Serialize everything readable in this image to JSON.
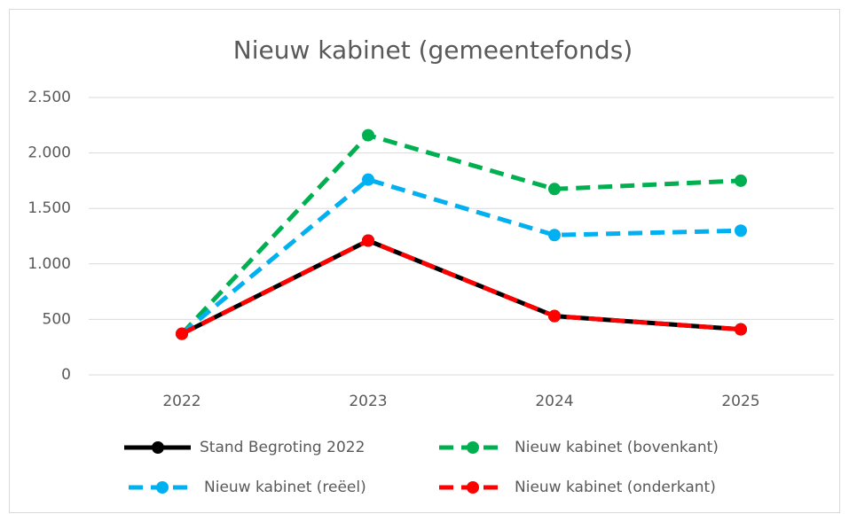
{
  "chart_data": {
    "type": "line",
    "title": "Nieuw kabinet (gemeentefonds)",
    "categories": [
      "2022",
      "2023",
      "2024",
      "2025"
    ],
    "series": [
      {
        "name": "Stand Begroting 2022",
        "color": "#000000",
        "dash": false,
        "values": [
          370,
          1210,
          530,
          410
        ]
      },
      {
        "name": "Nieuw kabinet (bovenkant)",
        "color": "#00b050",
        "dash": true,
        "values": [
          370,
          2160,
          1675,
          1750
        ]
      },
      {
        "name": "Nieuw kabinet (reëel)",
        "color": "#00b0f0",
        "dash": true,
        "values": [
          370,
          1760,
          1260,
          1300
        ]
      },
      {
        "name": "Nieuw kabinet (onderkant)",
        "color": "#ff0000",
        "dash": true,
        "values": [
          370,
          1210,
          530,
          410
        ]
      }
    ],
    "ylim": [
      0,
      2500
    ],
    "yticks": [
      0,
      500,
      {
        "value": 1000,
        "label": "1.000"
      },
      {
        "value": 1500,
        "label": "1.500"
      },
      {
        "value": 2000,
        "label": "2.000"
      },
      {
        "value": 2500,
        "label": "2.500"
      }
    ],
    "grid": true,
    "legend": "bottom"
  }
}
